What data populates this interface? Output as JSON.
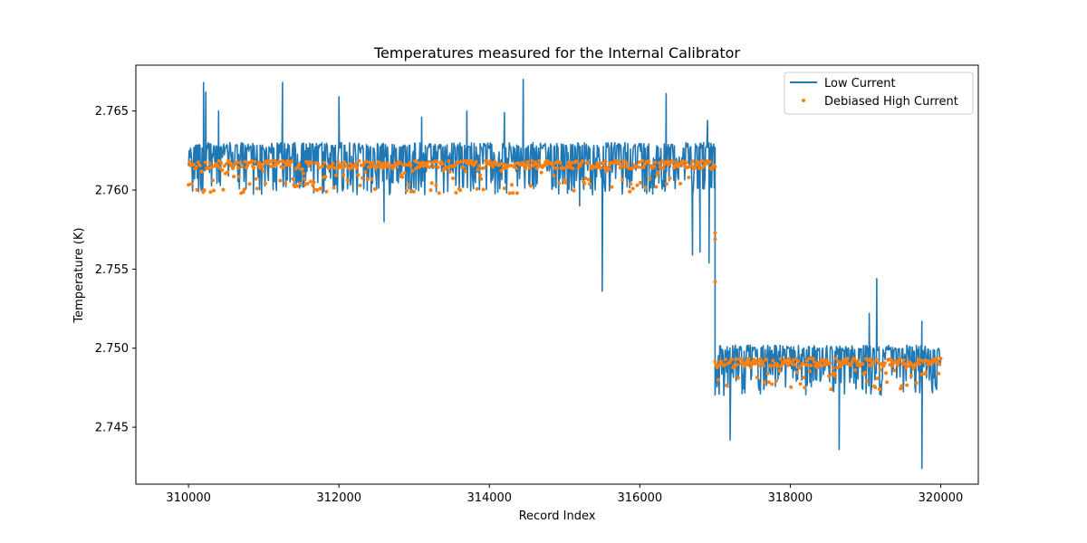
{
  "chart_data": {
    "type": "line",
    "title": "Temperatures measured for the Internal Calibrator",
    "xlabel": "Record Index",
    "ylabel": "Temperature (K)",
    "xlim": [
      309300,
      320500
    ],
    "ylim": [
      2.7414,
      2.7679
    ],
    "x_ticks": [
      310000,
      312000,
      314000,
      316000,
      318000,
      320000
    ],
    "x_tick_labels": [
      "310000",
      "312000",
      "314000",
      "316000",
      "318000",
      "320000"
    ],
    "y_ticks": [
      2.745,
      2.75,
      2.755,
      2.76,
      2.765
    ],
    "y_tick_labels": [
      "2.745",
      "2.750",
      "2.755",
      "2.760",
      "2.765"
    ],
    "grid": false,
    "legend_position": "top-right",
    "step_index": 317000,
    "series": [
      {
        "name": "Low Current",
        "kind": "line",
        "color": "#1f77b4",
        "segments": [
          {
            "x_start": 310000,
            "x_end": 317000,
            "baseline": 2.7618,
            "band_low": 2.7597,
            "band_high": 2.763
          },
          {
            "x_start": 317000,
            "x_end": 320000,
            "baseline": 2.749,
            "band_low": 2.747,
            "band_high": 2.7502
          }
        ],
        "spikes": [
          {
            "x": 310200,
            "y": 2.7668
          },
          {
            "x": 310230,
            "y": 2.7662
          },
          {
            "x": 310400,
            "y": 2.765
          },
          {
            "x": 311250,
            "y": 2.7668
          },
          {
            "x": 312000,
            "y": 2.7659
          },
          {
            "x": 313100,
            "y": 2.7646
          },
          {
            "x": 313700,
            "y": 2.765
          },
          {
            "x": 314200,
            "y": 2.7649
          },
          {
            "x": 314450,
            "y": 2.767
          },
          {
            "x": 316350,
            "y": 2.7661
          },
          {
            "x": 316900,
            "y": 2.7644
          },
          {
            "x": 319150,
            "y": 2.7544
          },
          {
            "x": 319050,
            "y": 2.7522
          },
          {
            "x": 319750,
            "y": 2.7517
          },
          {
            "x": 315500,
            "y": 2.7536
          },
          {
            "x": 316800,
            "y": 2.7561
          },
          {
            "x": 316920,
            "y": 2.7554
          },
          {
            "x": 316700,
            "y": 2.7559
          },
          {
            "x": 317200,
            "y": 2.7442
          },
          {
            "x": 318650,
            "y": 2.7436
          },
          {
            "x": 319750,
            "y": 2.7424
          },
          {
            "x": 315200,
            "y": 2.759
          },
          {
            "x": 312600,
            "y": 2.758
          }
        ]
      },
      {
        "name": "Debiased High Current",
        "kind": "scatter",
        "color": "#ff7f0e",
        "segments": [
          {
            "x_start": 310000,
            "x_end": 317000,
            "level": 2.7616,
            "dip_low": 2.7598
          },
          {
            "x_start": 317000,
            "x_end": 320000,
            "level": 2.7491,
            "dip_low": 2.7473
          }
        ],
        "transition_points": [
          {
            "x": 317000,
            "y": 2.7573
          },
          {
            "x": 317000,
            "y": 2.7569
          },
          {
            "x": 317000,
            "y": 2.7542
          }
        ]
      }
    ]
  }
}
